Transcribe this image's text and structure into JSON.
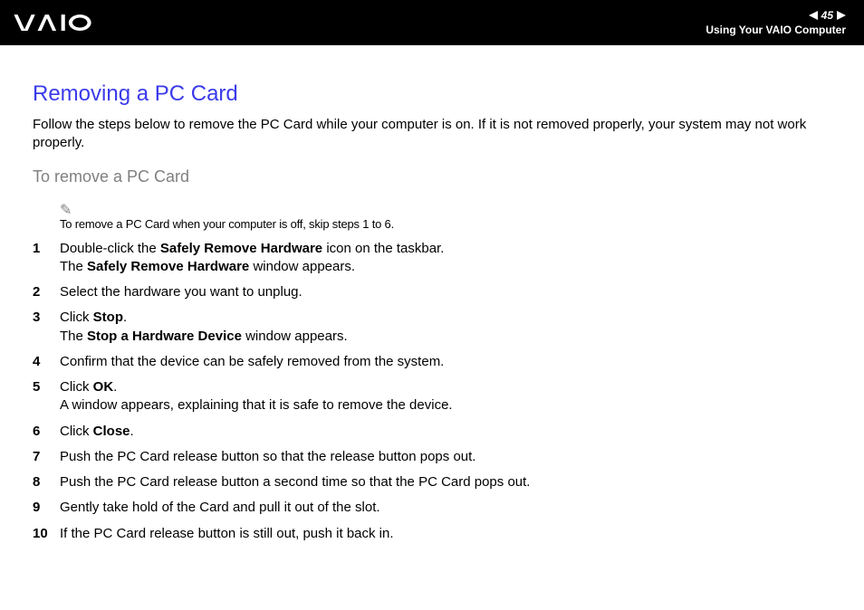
{
  "header": {
    "page_number": "45",
    "section": "Using Your VAIO Computer"
  },
  "title": "Removing a PC Card",
  "intro": "Follow the steps below to remove the PC Card while your computer is on. If it is not removed properly, your system may not work properly.",
  "subtitle": "To remove a PC Card",
  "note": "To remove a PC Card when your computer is off, skip steps 1 to 6.",
  "steps": [
    {
      "n": "1",
      "pre": "Double-click the ",
      "b1": "Safely Remove Hardware",
      "mid": " icon on the taskbar.",
      "br": true,
      "pre2": "The ",
      "b2": "Safely Remove Hardware",
      "post2": " window appears."
    },
    {
      "n": "2",
      "pre": "Select the hardware you want to unplug."
    },
    {
      "n": "3",
      "pre": "Click ",
      "b1": "Stop",
      "mid": ".",
      "br": true,
      "pre2": "The ",
      "b2": "Stop a Hardware Device",
      "post2": " window appears."
    },
    {
      "n": "4",
      "pre": "Confirm that the device can be safely removed from the system."
    },
    {
      "n": "5",
      "pre": "Click ",
      "b1": "OK",
      "mid": ".",
      "br": true,
      "pre2": "A window appears, explaining that it is safe to remove the device."
    },
    {
      "n": "6",
      "pre": "Click ",
      "b1": "Close",
      "mid": "."
    },
    {
      "n": "7",
      "pre": "Push the PC Card release button so that the release button pops out."
    },
    {
      "n": "8",
      "pre": "Push the PC Card release button a second time so that the PC Card pops out."
    },
    {
      "n": "9",
      "pre": "Gently take hold of the Card and pull it out of the slot."
    },
    {
      "n": "10",
      "pre": "If the PC Card release button is still out, push it back in."
    }
  ],
  "colors": {
    "title": "#3a3aea",
    "subtitle": "#808080",
    "header_bg": "#000000",
    "text": "#000000"
  }
}
